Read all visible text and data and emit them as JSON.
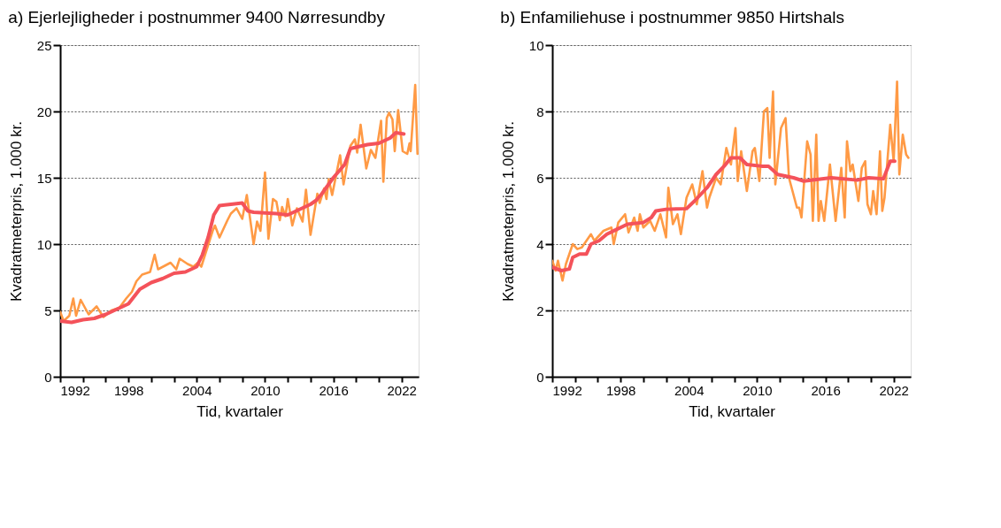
{
  "chart_data": [
    {
      "type": "line",
      "title": "a) Ejerlejligheder i postnummer 9400 Nørresundby",
      "xlabel": "Tid, kvartaler",
      "ylabel": "Kvadratmeterpris, 1.000 kr.",
      "xlim": [
        1992,
        2023.5
      ],
      "xticks": [
        1992,
        {
          "value": 1994,
          "label": null
        },
        {
          "value": 1996,
          "label": null
        },
        1998,
        {
          "value": 2000,
          "label": null
        },
        {
          "value": 2002,
          "label": null
        },
        2004,
        {
          "value": 2006,
          "label": null
        },
        {
          "value": 2008,
          "label": null
        },
        2010,
        {
          "value": 2012,
          "label": null
        },
        {
          "value": 2014,
          "label": null
        },
        2016,
        {
          "value": 2018,
          "label": null
        },
        {
          "value": 2020,
          "label": null
        },
        2022
      ],
      "ylim": [
        0,
        25
      ],
      "yticks": [
        0,
        5,
        10,
        15,
        20,
        25
      ],
      "grid": "y",
      "series": [
        {
          "color": "#ff9a45",
          "x": [
            1992,
            1992.3,
            1992.8,
            1993.15,
            1993.4,
            1993.8,
            1994.5,
            1995.2,
            1995.8,
            1996.5,
            1997.2,
            1997.8,
            1998.3,
            1998.7,
            1999.2,
            1999.9,
            2000.3,
            2000.6,
            2001.7,
            2002.2,
            2002.5,
            2003.2,
            2003.7,
            2004.1,
            2004.4,
            2005.4,
            2005.6,
            2006,
            2006.7,
            2007,
            2007.5,
            2008,
            2008.4,
            2009,
            2009.3,
            2009.6,
            2010,
            2010.3,
            2010.7,
            2011,
            2011.3,
            2011.5,
            2011.8,
            2012,
            2012.4,
            2012.8,
            2013.3,
            2013.6,
            2014,
            2014.6,
            2014.8,
            2015.2,
            2015.4,
            2015.6,
            2015.9,
            2016.6,
            2016.9,
            2017.5,
            2017.9,
            2018.1,
            2018.4,
            2018.9,
            2019.3,
            2019.7,
            2020.2,
            2020.4,
            2020.7,
            2020.9,
            2021.2,
            2021.4,
            2021.7,
            2022.1,
            2022.5,
            2022.7,
            2022.8,
            2023.2,
            2023.4
          ],
          "values": [
            4.9,
            4.2,
            4.6,
            5.9,
            4.6,
            5.8,
            4.7,
            5.3,
            4.5,
            5.0,
            5.2,
            5.9,
            6.4,
            7.2,
            7.7,
            7.9,
            9.2,
            8.1,
            8.6,
            8.1,
            8.9,
            8.5,
            8.3,
            8.6,
            8.3,
            11.0,
            11.4,
            10.5,
            11.8,
            12.3,
            12.7,
            11.9,
            13.7,
            10.0,
            11.7,
            11.0,
            15.4,
            10.4,
            13.4,
            13.2,
            11.8,
            12.8,
            12.1,
            13.4,
            11.4,
            12.7,
            11.7,
            14.1,
            10.7,
            13.8,
            13.1,
            14.2,
            13.4,
            14.9,
            13.7,
            16.7,
            14.5,
            17.4,
            17.9,
            16.9,
            19.0,
            15.7,
            17.1,
            16.5,
            19.3,
            14.7,
            19.5,
            19.9,
            19.4,
            17.0,
            20.1,
            17.0,
            16.8,
            17.6,
            17.0,
            22.0,
            16.8
          ]
        },
        {
          "color": "#f4525a",
          "x": [
            1992,
            1993,
            1994,
            1995,
            1996,
            1997,
            1998,
            1999,
            2000,
            2001,
            2002,
            2003,
            2004,
            2004.5,
            2005,
            2005.5,
            2006,
            2007,
            2008,
            2008.5,
            2009,
            2011,
            2012,
            2013,
            2014,
            2014.5,
            2015,
            2016,
            2017,
            2017.5,
            2018,
            2019,
            2020,
            2021,
            2021.5,
            2022.2
          ],
          "values": [
            4.2,
            4.1,
            4.3,
            4.4,
            4.7,
            5.1,
            5.5,
            6.6,
            7.1,
            7.4,
            7.8,
            7.9,
            8.3,
            9.2,
            10.5,
            12.2,
            12.9,
            13.0,
            13.1,
            12.5,
            12.4,
            12.3,
            12.2,
            12.6,
            13.0,
            13.3,
            13.8,
            15.0,
            16.0,
            17.2,
            17.3,
            17.5,
            17.6,
            18.0,
            18.4,
            18.3
          ]
        }
      ]
    },
    {
      "type": "line",
      "title": "b) Enfamiliehuse i postnummer 9850 Hirtshals",
      "xlabel": "Tid, kvartaler",
      "ylabel": "Kvadratmeterpris, 1.000 kr.",
      "xlim": [
        1992,
        2023.5
      ],
      "xticks": [
        1992,
        {
          "value": 1994,
          "label": null
        },
        {
          "value": 1996,
          "label": null
        },
        1998,
        {
          "value": 2000,
          "label": null
        },
        {
          "value": 2002,
          "label": null
        },
        2004,
        {
          "value": 2006,
          "label": null
        },
        {
          "value": 2008,
          "label": null
        },
        2010,
        {
          "value": 2012,
          "label": null
        },
        {
          "value": 2014,
          "label": null
        },
        2016,
        {
          "value": 2018,
          "label": null
        },
        {
          "value": 2020,
          "label": null
        },
        2022
      ],
      "ylim": [
        0,
        10
      ],
      "yticks": [
        0,
        2,
        4,
        6,
        8,
        10
      ],
      "grid": "y",
      "series": [
        {
          "color": "#ff9a45",
          "x": [
            1992,
            1992.3,
            1992.5,
            1992.9,
            1993.2,
            1993.8,
            1994.2,
            1994.6,
            1995.4,
            1995.7,
            1996.5,
            1997.2,
            1997.4,
            1997.8,
            1998.4,
            1998.7,
            1999.2,
            1999.5,
            1999.7,
            2000,
            2000.6,
            2001,
            2001.5,
            2002,
            2002.2,
            2002.6,
            2003,
            2003.3,
            2003.8,
            2004.3,
            2004.7,
            2005.2,
            2005.6,
            2005.8,
            2006.4,
            2006.8,
            2007.3,
            2007.7,
            2008.1,
            2008.3,
            2008.6,
            2009.1,
            2009.6,
            2009.8,
            2010.2,
            2010.6,
            2010.9,
            2011.1,
            2011.4,
            2011.6,
            2012.1,
            2012.5,
            2012.8,
            2013.5,
            2013.7,
            2013.9,
            2014.4,
            2014.7,
            2014.9,
            2015.2,
            2015.4,
            2015.6,
            2015.9,
            2016.4,
            2016.9,
            2017.4,
            2017.7,
            2017.9,
            2018.2,
            2018.4,
            2018.9,
            2019.2,
            2019.5,
            2019.7,
            2020,
            2020.2,
            2020.5,
            2020.8,
            2021,
            2021.2,
            2021.7,
            2022,
            2022.3,
            2022.5,
            2022.8,
            2023.1,
            2023.3
          ],
          "values": [
            3.5,
            3.2,
            3.5,
            2.9,
            3.4,
            4.0,
            3.85,
            3.9,
            4.3,
            4.1,
            4.4,
            4.5,
            4.0,
            4.65,
            4.9,
            4.35,
            4.8,
            4.4,
            4.9,
            4.5,
            4.7,
            4.4,
            4.9,
            4.2,
            5.7,
            4.6,
            4.9,
            4.3,
            5.4,
            5.8,
            5.2,
            6.2,
            5.1,
            5.4,
            6.0,
            5.8,
            6.9,
            6.4,
            7.5,
            5.9,
            6.8,
            5.6,
            6.8,
            6.9,
            5.9,
            8.0,
            8.1,
            6.6,
            8.6,
            5.8,
            7.5,
            7.8,
            6.0,
            5.1,
            5.1,
            4.8,
            7.1,
            6.7,
            4.7,
            7.3,
            4.7,
            5.3,
            4.7,
            6.4,
            4.7,
            6.3,
            4.8,
            7.1,
            6.2,
            6.4,
            5.3,
            6.3,
            6.5,
            5.2,
            4.9,
            5.6,
            4.9,
            6.8,
            5.0,
            5.4,
            7.6,
            6.5,
            8.9,
            6.1,
            7.3,
            6.7,
            6.6
          ]
        },
        {
          "color": "#f4525a",
          "x": [
            1992,
            1992.8,
            1993.5,
            1993.8,
            1994.4,
            1995,
            1995.4,
            1996.1,
            1996.8,
            1997.7,
            1998.6,
            2000,
            2000.7,
            2001.1,
            2002,
            2003.8,
            2004.5,
            2005.6,
            2006.4,
            2007.1,
            2007.7,
            2008.5,
            2009.1,
            2010.4,
            2011,
            2011.8,
            2013.2,
            2014.1,
            2016.5,
            2018.8,
            2019.8,
            2021.1,
            2021.7,
            2022.1
          ],
          "values": [
            3.3,
            3.2,
            3.25,
            3.6,
            3.7,
            3.7,
            4.0,
            4.1,
            4.3,
            4.45,
            4.6,
            4.65,
            4.8,
            5.0,
            5.05,
            5.07,
            5.3,
            5.7,
            6.1,
            6.35,
            6.6,
            6.6,
            6.4,
            6.35,
            6.35,
            6.1,
            6.0,
            5.9,
            6.0,
            5.93,
            6.0,
            5.97,
            6.5,
            6.5
          ]
        }
      ]
    }
  ]
}
